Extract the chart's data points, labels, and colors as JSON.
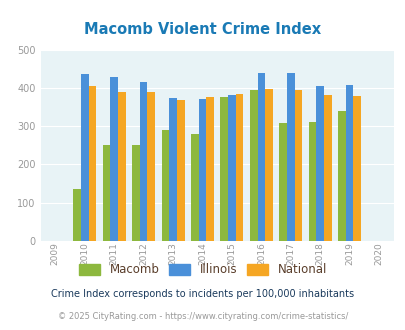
{
  "title": "Macomb Violent Crime Index",
  "years": [
    2009,
    2010,
    2011,
    2012,
    2013,
    2014,
    2015,
    2016,
    2017,
    2018,
    2019,
    2020
  ],
  "macomb": [
    null,
    135,
    250,
    250,
    290,
    280,
    375,
    395,
    308,
    310,
    340,
    null
  ],
  "illinois": [
    null,
    435,
    427,
    414,
    373,
    370,
    382,
    438,
    438,
    405,
    408,
    null
  ],
  "national": [
    null,
    405,
    388,
    388,
    367,
    376,
    383,
    397,
    394,
    380,
    379,
    null
  ],
  "bar_colors": {
    "macomb": "#8db83e",
    "illinois": "#4a90d9",
    "national": "#f5a623"
  },
  "ylim": [
    0,
    500
  ],
  "yticks": [
    0,
    100,
    200,
    300,
    400,
    500
  ],
  "plot_bg": "#e8f3f6",
  "legend_labels": [
    "Macomb",
    "Illinois",
    "National"
  ],
  "legend_text_color": "#5a3e2b",
  "subtitle": "Crime Index corresponds to incidents per 100,000 inhabitants",
  "footer": "© 2025 CityRating.com - https://www.cityrating.com/crime-statistics/",
  "title_color": "#1a7ab5",
  "subtitle_color": "#1a3a5c",
  "footer_color": "#999999",
  "tick_color": "#999999"
}
